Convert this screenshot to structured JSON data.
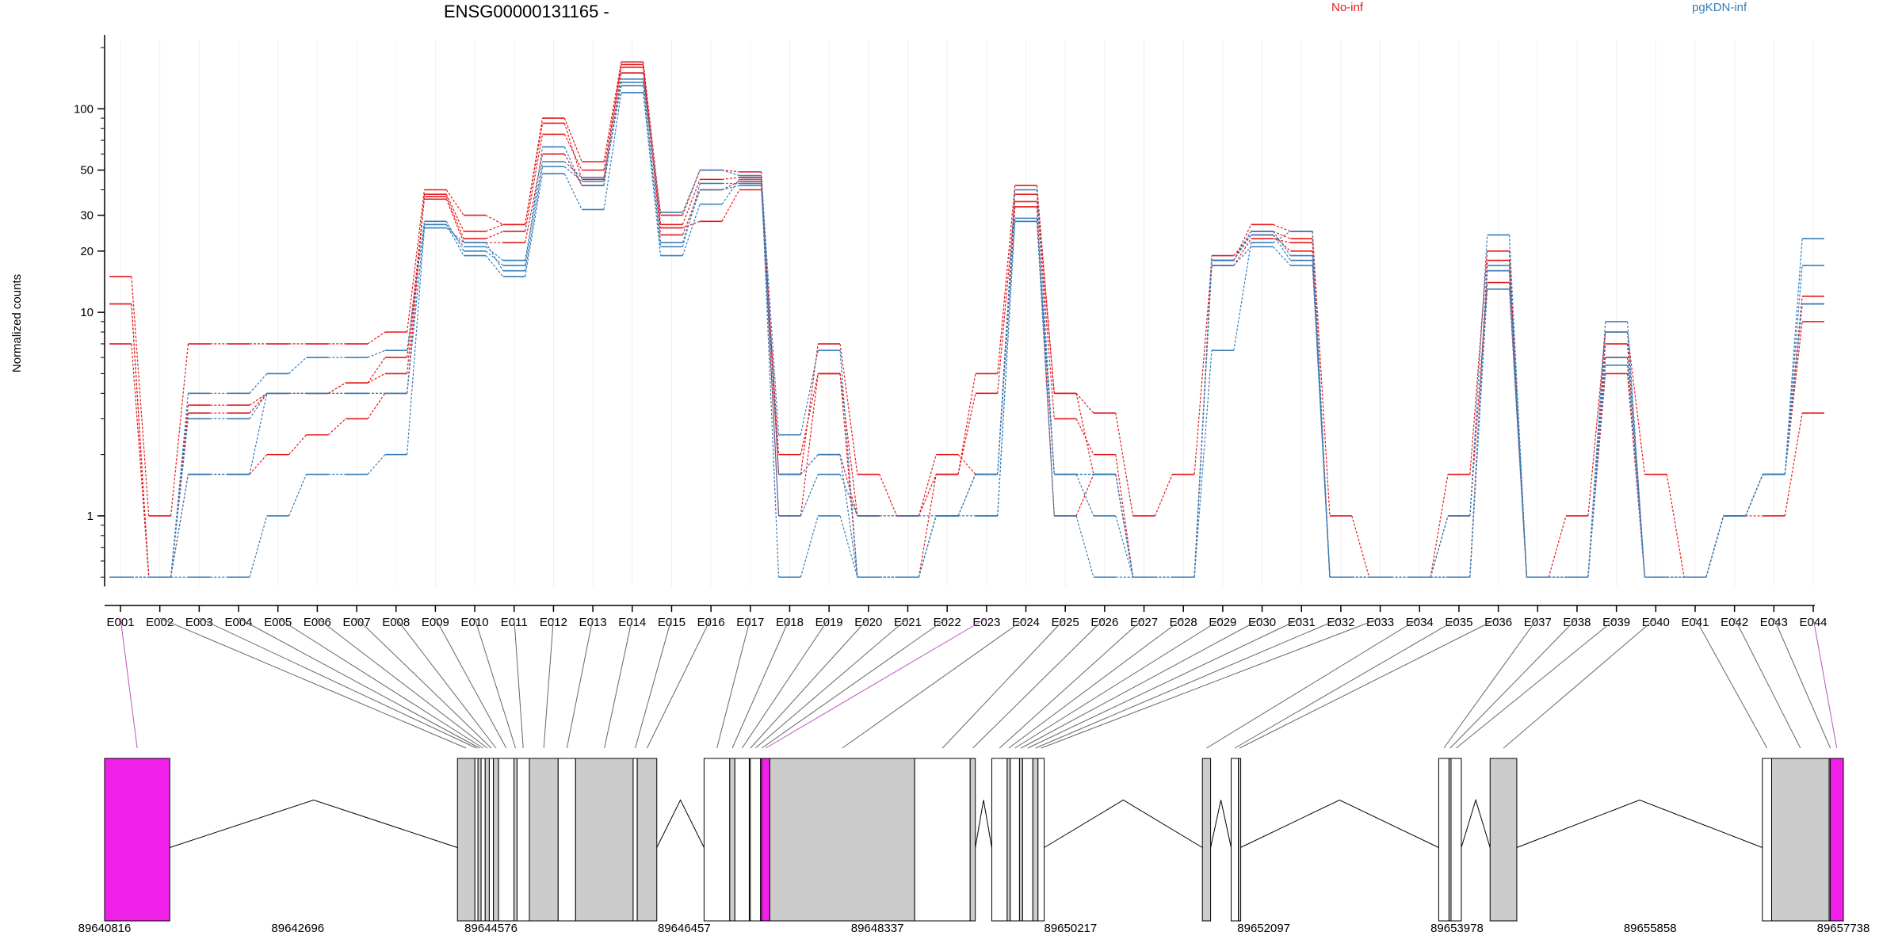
{
  "chart_data": {
    "type": "line",
    "title": "ENSG00000131165 -",
    "ylabel": "Normalized counts",
    "yscale": "log",
    "ylim": [
      0.45,
      200
    ],
    "yticks": [
      1,
      10,
      20,
      30,
      50,
      100
    ],
    "grid": true,
    "legend_placement": "top-right",
    "colors": {
      "No-inf": "#e41a1c",
      "pgKDN-inf": "#377eb8",
      "highlight": "#f020e8",
      "exon": "#cccccc"
    },
    "categories": [
      "E001",
      "E002",
      "E003",
      "E004",
      "E005",
      "E006",
      "E007",
      "E008",
      "E009",
      "E010",
      "E011",
      "E012",
      "E013",
      "E014",
      "E015",
      "E016",
      "E017",
      "E018",
      "E019",
      "E020",
      "E021",
      "E022",
      "E023",
      "E024",
      "E025",
      "E026",
      "E027",
      "E028",
      "E029",
      "E030",
      "E031",
      "E032",
      "E033",
      "E034",
      "E035",
      "E036",
      "E037",
      "E038",
      "E039",
      "E040",
      "E041",
      "E042",
      "E043",
      "E044"
    ],
    "series": [
      {
        "name": "No-inf",
        "values": [
          15,
          1,
          7,
          7,
          7,
          7,
          7,
          8,
          40,
          30,
          27,
          90,
          55,
          170,
          30,
          50,
          49,
          1.6,
          7,
          1.6,
          1,
          1.6,
          5,
          42,
          4,
          3.2,
          1,
          1.6,
          18,
          27,
          25,
          1,
          0.5,
          0.5,
          1.6,
          20,
          0.5,
          1,
          8,
          1.6,
          0.5,
          1,
          1,
          3.2
        ]
      },
      {
        "name": "No-inf",
        "values": [
          11,
          0.5,
          3.2,
          3.2,
          4,
          4,
          4.5,
          5,
          37,
          23,
          25,
          75,
          50,
          160,
          27,
          45,
          46,
          1,
          5,
          1,
          1,
          1,
          1.6,
          38,
          4,
          1.6,
          0.5,
          0.5,
          18,
          25,
          23,
          0.5,
          0.5,
          0.5,
          1,
          14,
          0.5,
          0.5,
          6,
          0.5,
          0.5,
          1,
          1.6,
          12
        ]
      },
      {
        "name": "No-inf",
        "values": [
          7,
          0.5,
          1.6,
          1.6,
          2,
          2.5,
          3,
          4,
          38,
          25,
          27,
          85,
          45,
          165,
          24,
          40,
          44,
          1.6,
          2,
          1,
          1,
          2,
          1.6,
          33,
          1,
          1.6,
          0.5,
          0.5,
          17,
          23,
          22,
          0.5,
          0.5,
          0.5,
          0.5,
          18,
          0.5,
          0.5,
          5,
          0.5,
          0.5,
          1,
          1.6,
          9
        ]
      },
      {
        "name": "No-inf",
        "values": [
          11,
          0.5,
          3.5,
          3.5,
          4,
          4,
          4.5,
          6,
          36,
          22,
          22,
          60,
          42,
          150,
          26,
          28,
          40,
          2,
          5,
          0.5,
          0.5,
          1.6,
          4,
          35,
          3,
          2,
          0.5,
          0.5,
          19,
          24,
          20,
          0.5,
          0.5,
          0.5,
          0.5,
          16,
          0.5,
          0.5,
          7,
          0.5,
          0.5,
          1,
          1.6,
          11
        ]
      },
      {
        "name": "pgKDN-inf",
        "values": [
          0.5,
          0.5,
          4,
          4,
          5,
          6,
          6,
          6.5,
          28,
          20,
          17,
          65,
          42,
          140,
          31,
          50,
          47,
          2.5,
          6.5,
          0.5,
          0.5,
          1,
          1.6,
          40,
          1.6,
          1.6,
          0.5,
          0.5,
          6.5,
          22,
          25,
          0.5,
          0.5,
          0.5,
          1,
          24,
          0.5,
          0.5,
          9,
          0.5,
          0.5,
          1,
          1.6,
          23
        ]
      },
      {
        "name": "pgKDN-inf",
        "values": [
          0.5,
          0.5,
          1.6,
          1.6,
          4,
          4,
          4,
          4,
          27,
          19,
          15,
          48,
          32,
          120,
          19,
          34,
          45,
          0.5,
          1,
          0.5,
          0.5,
          1,
          1,
          28,
          1,
          0.5,
          0.5,
          0.5,
          17,
          21,
          17,
          0.5,
          0.5,
          0.5,
          0.5,
          13,
          0.5,
          0.5,
          6,
          0.5,
          0.5,
          1,
          1.6,
          17
        ]
      },
      {
        "name": "pgKDN-inf",
        "values": [
          0.5,
          0.5,
          0.5,
          0.5,
          1,
          1.6,
          1.6,
          2,
          26,
          22,
          16,
          52,
          44,
          130,
          21,
          43,
          43,
          1,
          1.6,
          1,
          1,
          1,
          1,
          28,
          1.6,
          1,
          0.5,
          0.5,
          18,
          24,
          18,
          0.5,
          0.5,
          0.5,
          0.5,
          17,
          0.5,
          0.5,
          5.5,
          0.5,
          0.5,
          1,
          1.6,
          11
        ]
      },
      {
        "name": "pgKDN-inf",
        "values": [
          0.5,
          0.5,
          3,
          3,
          4,
          4,
          4,
          4,
          27,
          21,
          18,
          55,
          46,
          135,
          22,
          40,
          42,
          1.6,
          2,
          0.5,
          0.5,
          1,
          1.6,
          29,
          1.6,
          1.6,
          0.5,
          0.5,
          18,
          25,
          19,
          0.5,
          0.5,
          0.5,
          0.5,
          16,
          0.5,
          0.5,
          8,
          0.5,
          0.5,
          1,
          1.6,
          11
        ]
      }
    ],
    "legend": [
      "No-inf",
      "pgKDN-inf"
    ],
    "genome_axis": {
      "ticks": [
        "89640816",
        "89642696",
        "89644576",
        "89646457",
        "89648337",
        "89650217",
        "89652097",
        "89653978",
        "89655858",
        "89657738"
      ],
      "range": [
        89640816,
        89657738
      ],
      "exons": [
        {
          "id": "E001",
          "start": 89640816,
          "end": 89641450,
          "highlight": true
        },
        {
          "id": "E002",
          "start": 89644250,
          "end": 89644420,
          "highlight": false
        },
        {
          "id": "E003",
          "start": 89644420,
          "end": 89644450,
          "highlight": false
        },
        {
          "id": "E004",
          "start": 89644450,
          "end": 89644480,
          "highlight": false
        },
        {
          "id": "E005",
          "start": 89644480,
          "end": 89644520,
          "highlight": false
        },
        {
          "id": "E006",
          "start": 89644520,
          "end": 89644560,
          "highlight": false
        },
        {
          "id": "E007",
          "start": 89644560,
          "end": 89644600,
          "highlight": false
        },
        {
          "id": "E008",
          "start": 89644600,
          "end": 89644650,
          "highlight": false
        },
        {
          "id": "E009",
          "start": 89644650,
          "end": 89644800,
          "highlight": false
        },
        {
          "id": "E010",
          "start": 89644800,
          "end": 89644830,
          "highlight": false
        },
        {
          "id": "E011",
          "start": 89644830,
          "end": 89644950,
          "highlight": false
        },
        {
          "id": "E012",
          "start": 89644950,
          "end": 89645230,
          "highlight": false
        },
        {
          "id": "E013",
          "start": 89645230,
          "end": 89645400,
          "highlight": false
        },
        {
          "id": "E014",
          "start": 89645400,
          "end": 89645960,
          "highlight": false
        },
        {
          "id": "E015",
          "start": 89645960,
          "end": 89646000,
          "highlight": false
        },
        {
          "id": "E016",
          "start": 89646000,
          "end": 89646190,
          "highlight": false
        },
        {
          "id": "E017",
          "start": 89646650,
          "end": 89646900,
          "highlight": false
        },
        {
          "id": "E018",
          "start": 89646900,
          "end": 89646950,
          "highlight": false
        },
        {
          "id": "E019",
          "start": 89646950,
          "end": 89647090,
          "highlight": false
        },
        {
          "id": "E020",
          "start": 89647090,
          "end": 89647100,
          "highlight": false
        },
        {
          "id": "E021",
          "start": 89647100,
          "end": 89647200,
          "highlight": false
        },
        {
          "id": "E022",
          "start": 89647200,
          "end": 89647210,
          "highlight": false
        },
        {
          "id": "E023",
          "start": 89647210,
          "end": 89647290,
          "highlight": true
        },
        {
          "id": "E024",
          "start": 89647290,
          "end": 89648700,
          "highlight": false
        },
        {
          "id": "E025",
          "start": 89648700,
          "end": 89649240,
          "highlight": false
        },
        {
          "id": "E026",
          "start": 89649240,
          "end": 89649290,
          "highlight": false
        },
        {
          "id": "E027",
          "start": 89649450,
          "end": 89649600,
          "highlight": false
        },
        {
          "id": "E028",
          "start": 89649600,
          "end": 89649630,
          "highlight": false
        },
        {
          "id": "E029",
          "start": 89649630,
          "end": 89649720,
          "highlight": false
        },
        {
          "id": "E030",
          "start": 89649720,
          "end": 89649750,
          "highlight": false
        },
        {
          "id": "E031",
          "start": 89649750,
          "end": 89649850,
          "highlight": false
        },
        {
          "id": "E032",
          "start": 89649850,
          "end": 89649900,
          "highlight": false
        },
        {
          "id": "E033",
          "start": 89649900,
          "end": 89649960,
          "highlight": false
        },
        {
          "id": "E034",
          "start": 89651500,
          "end": 89651580,
          "highlight": false
        },
        {
          "id": "E035",
          "start": 89651780,
          "end": 89651850,
          "highlight": false
        },
        {
          "id": "E036",
          "start": 89651850,
          "end": 89651870,
          "highlight": false
        },
        {
          "id": "E037",
          "start": 89653800,
          "end": 89653900,
          "highlight": false
        },
        {
          "id": "E038",
          "start": 89653900,
          "end": 89653920,
          "highlight": false
        },
        {
          "id": "E039",
          "start": 89653920,
          "end": 89654020,
          "highlight": false
        },
        {
          "id": "E040",
          "start": 89654300,
          "end": 89654560,
          "highlight": false
        },
        {
          "id": "E041",
          "start": 89656950,
          "end": 89657040,
          "highlight": false
        },
        {
          "id": "E042",
          "start": 89657040,
          "end": 89657600,
          "highlight": false
        },
        {
          "id": "E043",
          "start": 89657600,
          "end": 89657610,
          "highlight": false
        },
        {
          "id": "E044",
          "start": 89657610,
          "end": 89657738,
          "highlight": true
        }
      ]
    }
  }
}
